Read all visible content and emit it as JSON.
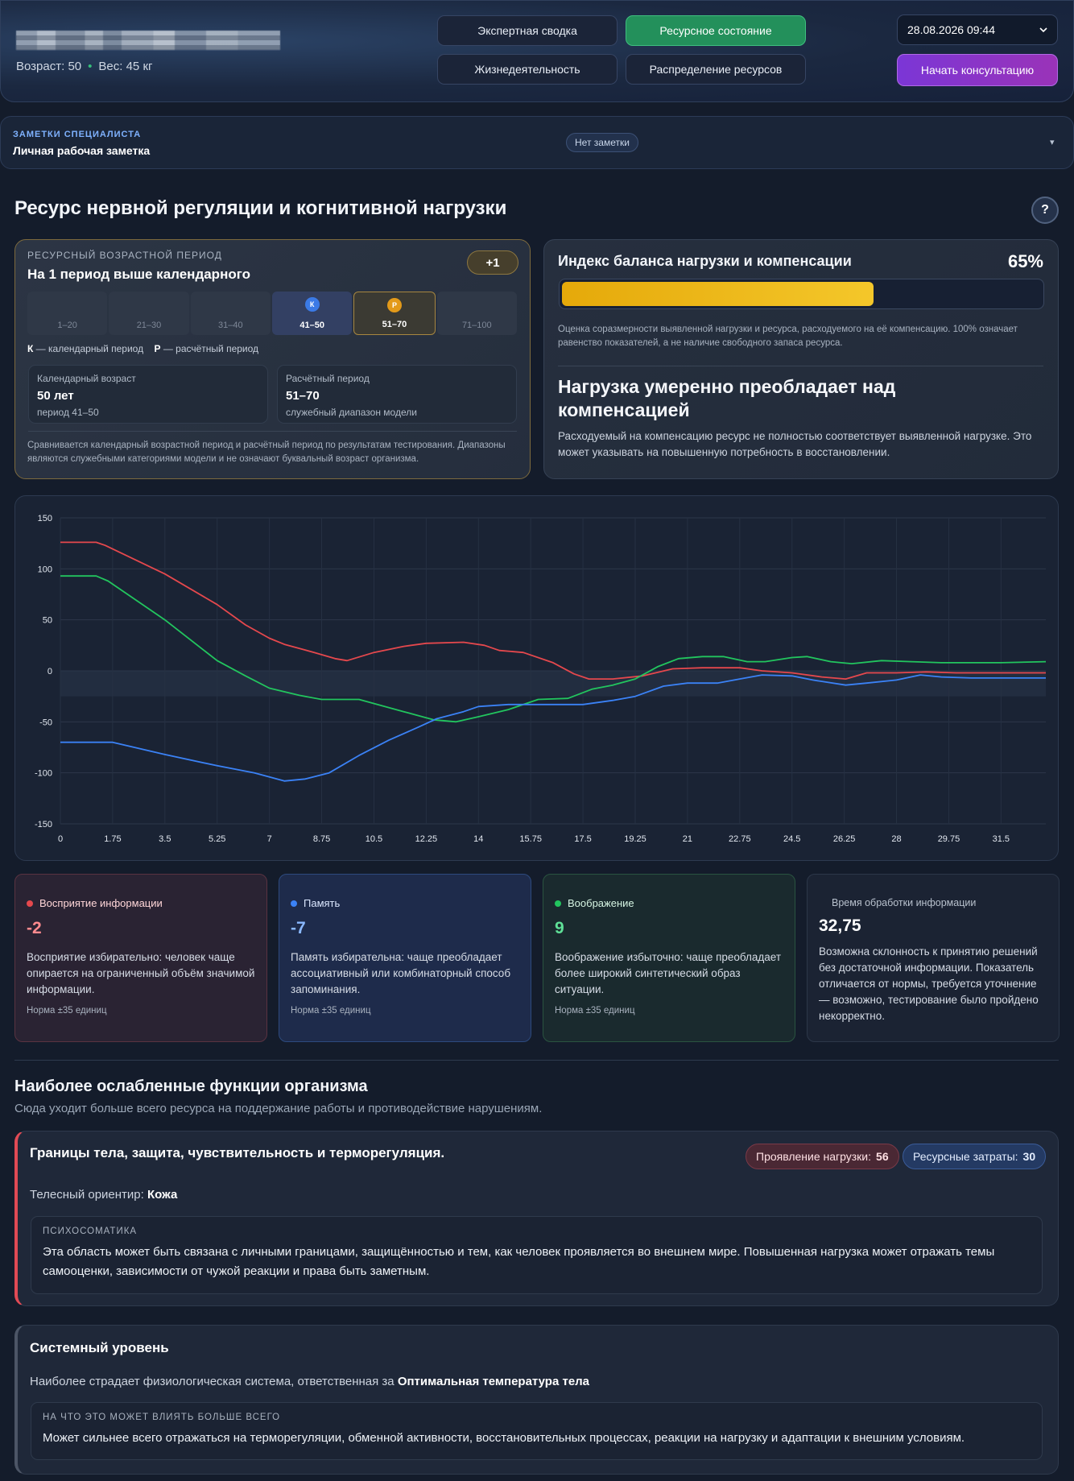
{
  "header": {
    "age_label": "Возраст: 50",
    "weight_label": "Вес: 45 кг",
    "nav": [
      {
        "label": "Экспертная сводка",
        "active": false
      },
      {
        "label": "Ресурсное состояние",
        "active": true
      },
      {
        "label": "Жизнедеятельность",
        "active": false
      },
      {
        "label": "Распределение ресурсов",
        "active": false
      }
    ],
    "date_value": "28.08.2026 09:44",
    "consult_label": "Начать консультацию"
  },
  "notes": {
    "caption": "ЗАМЕТКИ СПЕЦИАЛИСТА",
    "subtitle": "Личная рабочая заметка",
    "badge": "Нет заметки",
    "caret": "▾"
  },
  "section": {
    "title": "Ресурс нервной регуляции и когнитивной нагрузки",
    "help": "?"
  },
  "age_card": {
    "caption": "РЕСУРСНЫЙ ВОЗРАСТНОЙ ПЕРИОД",
    "title": "На 1 период выше календарного",
    "badge": "+1",
    "periods": [
      {
        "label": "1–20",
        "marker": ""
      },
      {
        "label": "21–30",
        "marker": ""
      },
      {
        "label": "31–40",
        "marker": ""
      },
      {
        "label": "41–50",
        "marker": "К"
      },
      {
        "label": "51–70",
        "marker": "Р"
      },
      {
        "label": "71–100",
        "marker": ""
      }
    ],
    "legend_k_key": "К",
    "legend_k": "— календарный период",
    "legend_p_key": "Р",
    "legend_p": "— расчётный период",
    "calendar": {
      "label": "Календарный возраст",
      "value": "50 лет",
      "sub": "период 41–50"
    },
    "estimated": {
      "label": "Расчётный период",
      "value": "51–70",
      "sub": "служебный диапазон модели"
    },
    "note": "Сравнивается календарный возрастной период и расчётный период по результатам тестирования. Диапазоны являются служебными категориями модели и не означают буквальный возраст организма."
  },
  "balance": {
    "title": "Индекс баланса нагрузки и компенсации",
    "percent_label": "65%",
    "percent": 65,
    "description": "Оценка соразмерности выявленной нагрузки и ресурса, расходуемого на её компенсацию. 100% означает равенство показателей, а не наличие свободного запаса ресурса.",
    "headline": "Нагрузка умеренно преобладает над компенсацией",
    "text": "Расходуемый на компенсацию ресурс не полностью соответствует выявленной нагрузке. Это может указывать на повышенную потребность в восстановлении."
  },
  "chart_data": {
    "type": "line",
    "x_ticks": [
      "0",
      "1.75",
      "3.5",
      "5.25",
      "7",
      "8.75",
      "10.5",
      "12.25",
      "14",
      "15.75",
      "17.5",
      "19.25",
      "21",
      "22.75",
      "24.5",
      "26.25",
      "28",
      "29.75",
      "31.5"
    ],
    "y_ticks": [
      "150",
      "100",
      "50",
      "0",
      "-50",
      "-100",
      "-150"
    ],
    "xlim": [
      0,
      33
    ],
    "ylim": [
      -150,
      150
    ],
    "grid": true,
    "series": [
      {
        "color": "#e5484d",
        "points": [
          [
            0,
            126
          ],
          [
            1.2,
            126
          ],
          [
            1.5,
            123
          ],
          [
            3.5,
            95
          ],
          [
            5.25,
            65
          ],
          [
            6.2,
            45
          ],
          [
            7,
            32
          ],
          [
            7.5,
            26
          ],
          [
            8.5,
            18
          ],
          [
            9.2,
            12
          ],
          [
            9.6,
            10
          ],
          [
            10.5,
            18
          ],
          [
            11.5,
            24
          ],
          [
            12.25,
            27
          ],
          [
            13.5,
            28
          ],
          [
            14.2,
            25
          ],
          [
            14.7,
            20
          ],
          [
            15.5,
            18
          ],
          [
            16.5,
            8
          ],
          [
            17.2,
            -3
          ],
          [
            17.7,
            -8
          ],
          [
            18.5,
            -8
          ],
          [
            19.5,
            -5
          ],
          [
            20.5,
            2
          ],
          [
            21.5,
            3
          ],
          [
            22.75,
            3
          ],
          [
            23.5,
            0
          ],
          [
            24.5,
            -2
          ],
          [
            25.5,
            -6
          ],
          [
            26.3,
            -8
          ],
          [
            27,
            -2
          ],
          [
            28,
            -2
          ],
          [
            29,
            -1
          ],
          [
            30,
            -2
          ],
          [
            31.5,
            -2
          ],
          [
            33,
            -2
          ]
        ]
      },
      {
        "color": "#22c55e",
        "points": [
          [
            0,
            93
          ],
          [
            1.2,
            93
          ],
          [
            1.6,
            88
          ],
          [
            3.5,
            50
          ],
          [
            5.25,
            10
          ],
          [
            6.2,
            -5
          ],
          [
            7,
            -17
          ],
          [
            8,
            -24
          ],
          [
            8.75,
            -28
          ],
          [
            10,
            -28
          ],
          [
            11.5,
            -40
          ],
          [
            12.5,
            -48
          ],
          [
            13.25,
            -50
          ],
          [
            14,
            -45
          ],
          [
            15,
            -38
          ],
          [
            16,
            -28
          ],
          [
            17,
            -27
          ],
          [
            17.8,
            -18
          ],
          [
            18.5,
            -14
          ],
          [
            19.25,
            -8
          ],
          [
            20,
            4
          ],
          [
            20.7,
            12
          ],
          [
            21.5,
            14
          ],
          [
            22.2,
            14
          ],
          [
            23,
            9
          ],
          [
            23.6,
            9
          ],
          [
            24.5,
            13
          ],
          [
            25,
            14
          ],
          [
            25.8,
            9
          ],
          [
            26.5,
            7
          ],
          [
            27.5,
            10
          ],
          [
            28.5,
            9
          ],
          [
            29.5,
            8
          ],
          [
            30.5,
            8
          ],
          [
            31.5,
            8
          ],
          [
            33,
            9
          ]
        ]
      },
      {
        "color": "#3b82f6",
        "points": [
          [
            0,
            -70
          ],
          [
            1.75,
            -70
          ],
          [
            3.5,
            -82
          ],
          [
            5.25,
            -93
          ],
          [
            6.5,
            -100
          ],
          [
            7.5,
            -108
          ],
          [
            8.2,
            -106
          ],
          [
            9,
            -100
          ],
          [
            10,
            -83
          ],
          [
            11,
            -68
          ],
          [
            12,
            -55
          ],
          [
            12.6,
            -47
          ],
          [
            13.5,
            -40
          ],
          [
            14,
            -35
          ],
          [
            15,
            -33
          ],
          [
            16,
            -33
          ],
          [
            17.5,
            -33
          ],
          [
            18.5,
            -29
          ],
          [
            19.25,
            -25
          ],
          [
            20.2,
            -15
          ],
          [
            21,
            -12
          ],
          [
            22,
            -12
          ],
          [
            22.75,
            -8
          ],
          [
            23.5,
            -4
          ],
          [
            24.5,
            -5
          ],
          [
            25.2,
            -9
          ],
          [
            26.3,
            -14
          ],
          [
            27,
            -12
          ],
          [
            28,
            -9
          ],
          [
            28.8,
            -4
          ],
          [
            29.5,
            -6
          ],
          [
            30.5,
            -7
          ],
          [
            31.5,
            -7
          ],
          [
            33,
            -7
          ]
        ]
      }
    ]
  },
  "metrics": [
    {
      "name": "Восприятие информации",
      "value": "-2",
      "text": "Восприятие избирательно: человек чаще опирается на ограниченный объём значимой информации.",
      "norm": "Норма ±35 единиц",
      "color": "#e5484d"
    },
    {
      "name": "Память",
      "value": "-7",
      "text": "Память избирательна: чаще преобладает ассоциативный или комбинаторный способ запоминания.",
      "norm": "Норма ±35 единиц",
      "color": "#3b82f6"
    },
    {
      "name": "Воображение",
      "value": "9",
      "text": "Воображение избыточно: чаще преобладает более широкий синтетический образ ситуации.",
      "norm": "Норма ±35 единиц",
      "color": "#22c55e"
    }
  ],
  "processing": {
    "caption": "Время обработки информации",
    "value": "32,75",
    "text": "Возможна склонность к принятию решений без достаточной информации. Показатель отличается от нормы, требуется уточнение — возможно, тестирование было пройдено некорректно."
  },
  "weak": {
    "heading": "Наиболее ослабленные функции организма",
    "subheading": "Сюда уходит больше всего ресурса на поддержание работы и противодействие нарушениям.",
    "card_title": "Границы тела, защита, чувствительность и терморегуляция.",
    "load_label": "Проявление нагрузки:",
    "load_value": "56",
    "cost_label": "Ресурсные затраты:",
    "cost_value": "30",
    "orient_label": "Телесный ориентир:",
    "orient_value": "Кожа",
    "psy_caption": "ПСИХОСОМАТИКА",
    "psy_text": "Эта область может быть связана с личными границами, защищённостью и тем, как человек проявляется во внешнем мире. Повышенная нагрузка может отражать темы самооценки, зависимости от чужой реакции и права быть заметным."
  },
  "system": {
    "title": "Системный уровень",
    "line_prefix": "Наиболее страдает физиологическая система, ответственная за",
    "line_value": "Оптимальная температура тела",
    "box_caption": "НА ЧТО ЭТО МОЖЕТ ВЛИЯТЬ БОЛЬШЕ ВСЕГО",
    "box_text": "Может сильнее всего отражаться на терморегуляции, обменной активности, восстановительных процессах, реакции на нагрузку и адаптации к внешним условиям."
  }
}
